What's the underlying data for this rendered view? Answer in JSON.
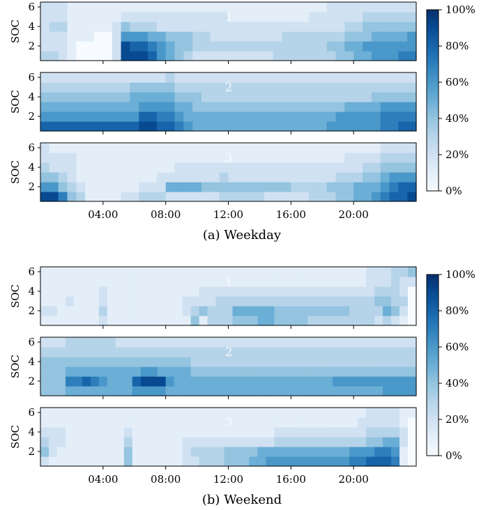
{
  "figure": {
    "captions": [
      "(a) Weekday",
      "(b) Weekend"
    ]
  },
  "chart_data": [
    {
      "type": "heatmap",
      "group": "(a) Weekday",
      "panel_label": "1",
      "ylabel": "SOC",
      "x_tick_labels": [
        "04:00",
        "08:00",
        "12:00",
        "16:00",
        "20:00"
      ],
      "x_tick_hours": [
        4,
        8,
        12,
        16,
        20
      ],
      "x_range_hours": [
        0,
        24
      ],
      "y_tick_labels": [
        "2",
        "4",
        "6"
      ],
      "y_range": [
        0.5,
        6.5
      ],
      "colorbar": {
        "ticks": [
          "0%",
          "20%",
          "40%",
          "60%",
          "80%",
          "100%"
        ],
        "range": [
          0,
          1
        ],
        "cmap": "Blues"
      },
      "rows_soc_1_to_6": [
        "332100002999865432222222223333333445566677",
        "222100002988765443333333333333334455666666",
        "222111002666554443322222222333333344455556",
        "233111112433322222222222222222222233444444",
        "222111111222222222222111111111222222333333",
        "222111111111111111111111111111112222222222"
      ]
    },
    {
      "type": "heatmap",
      "group": "(a) Weekday",
      "panel_label": "2",
      "ylabel": "SOC",
      "x_tick_labels": [
        "04:00",
        "08:00",
        "12:00",
        "16:00",
        "20:00"
      ],
      "x_range_hours": [
        0,
        24
      ],
      "y_tick_labels": [
        "2",
        "4",
        "6"
      ],
      "y_range": [
        0.5,
        6.5
      ],
      "rows_soc_1_to_6": [
        "888888888889988765555555555555556666667788",
        "666666666668877655555555555555555666667777",
        "555555555556666554444444444444444455556666",
        "444444444455555444333333333333333333344444",
        "333333333344444333333333333333333333333333",
        "222222222222223222222222222222222222222222"
      ]
    },
    {
      "type": "heatmap",
      "group": "(a) Weekday",
      "panel_label": "3",
      "ylabel": "SOC",
      "x_tick_labels": [
        "04:00",
        "08:00",
        "12:00",
        "16:00",
        "20:00"
      ],
      "x_range_hours": [
        0,
        24
      ],
      "y_tick_labels": [
        "2",
        "4",
        "6"
      ],
      "y_range": [
        0.5,
        6.5
      ],
      "rows_soc_1_to_6": [
        "997431111223332222223333322222333445567889",
        "664321111112225555444444444433334445556788",
        "443211111111122222223222222222222333445666",
        "322211111111111222222222222222222222334444",
        "222211111111111111111111111111111122223333",
        "211111111111111111111111111111111111112222"
      ]
    },
    {
      "type": "heatmap",
      "group": "(b) Weekend",
      "panel_label": "1",
      "ylabel": "SOC",
      "x_tick_labels": [
        "04:00",
        "08:00",
        "12:00",
        "16:00",
        "20:00"
      ],
      "x_range_hours": [
        0,
        24
      ],
      "y_tick_labels": [
        "2",
        "4",
        "6"
      ],
      "y_range": [
        0.5,
        6.5
      ],
      "rows_soc_1_to_6": [
        "111111121111111111413334445544443333333323210",
        "221111131111111112343335555544444444433335420",
        "111211121111111112222333333333333333333344330",
        "111111121111111111122222222222222222222233320",
        "111111111111111111111111111111111111111222322",
        "111111111111111111111111111111111111111222334"
      ]
    },
    {
      "type": "heatmap",
      "group": "(b) Weekend",
      "panel_label": "2",
      "ylabel": "SOC",
      "x_tick_labels": [
        "04:00",
        "08:00",
        "12:00",
        "16:00",
        "20:00"
      ],
      "x_range_hours": [
        0,
        24
      ],
      "y_tick_labels": [
        "2",
        "4",
        "6"
      ],
      "y_range": [
        0.5,
        6.5
      ],
      "rows_soc_1_to_6": [
        "444555555556666555555555555555555555555556666",
        "444778765558999655555555555555555556666666666",
        "444555555555665555444444444444444444444444444",
        "444444444444444444333333333333333333333333333",
        "333333333333333333333333333333333333333333333",
        "222333333222222222222222222222222222222222222"
      ]
    },
    {
      "type": "heatmap",
      "group": "(b) Weekend",
      "panel_label": "3",
      "ylabel": "SOC",
      "x_tick_labels": [
        "04:00",
        "08:00",
        "12:00",
        "16:00",
        "20:00"
      ],
      "x_range_hours": [
        0,
        24
      ],
      "y_tick_labels": [
        "2",
        "4",
        "6"
      ],
      "y_range": [
        0.5,
        6.5
      ],
      "rows_soc_1_to_6": [
        "211111111141111112233344455666666666677888710",
        "421111111141111112333344445555555555566677610",
        "322111111131111112222222222233333333333445520",
        "222111111121111111111111111122222222222333320",
        "111111111111111111111111111111111111112222210",
        "111111111111111111111111111111111111111222211"
      ]
    }
  ]
}
